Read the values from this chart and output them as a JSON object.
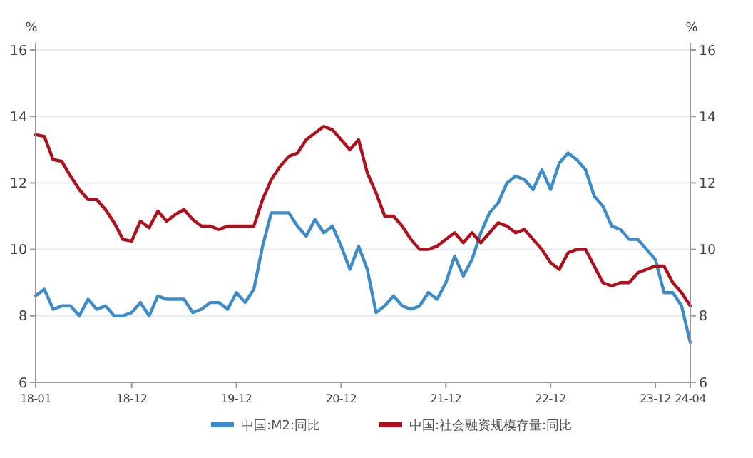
{
  "chart_data": {
    "type": "line",
    "ylabel": "%",
    "y2label": "%",
    "categories": [
      "18-01",
      null,
      null,
      null,
      null,
      null,
      null,
      null,
      null,
      null,
      null,
      "18-12",
      null,
      null,
      null,
      null,
      null,
      null,
      null,
      null,
      null,
      null,
      null,
      "19-12",
      null,
      null,
      null,
      null,
      null,
      null,
      null,
      null,
      null,
      null,
      null,
      "20-12",
      null,
      null,
      null,
      null,
      null,
      null,
      null,
      null,
      null,
      null,
      null,
      "21-12",
      null,
      null,
      null,
      null,
      null,
      null,
      null,
      null,
      null,
      null,
      null,
      "22-12",
      null,
      null,
      null,
      null,
      null,
      null,
      null,
      null,
      null,
      null,
      null,
      "23-12",
      null,
      null,
      null,
      "24-04"
    ],
    "series": [
      {
        "name": "中国:M2:同比",
        "color": "#3d8bc9",
        "values": [
          8.6,
          8.8,
          8.2,
          8.3,
          8.3,
          8.0,
          8.5,
          8.2,
          8.3,
          8.0,
          8.0,
          8.1,
          8.4,
          8.0,
          8.6,
          8.5,
          8.5,
          8.5,
          8.1,
          8.2,
          8.4,
          8.4,
          8.2,
          8.7,
          8.4,
          8.8,
          10.1,
          11.1,
          11.1,
          11.1,
          10.7,
          10.4,
          10.9,
          10.5,
          10.7,
          10.1,
          9.4,
          10.1,
          9.4,
          8.1,
          8.3,
          8.6,
          8.3,
          8.2,
          8.3,
          8.7,
          8.5,
          9.0,
          9.8,
          9.2,
          9.7,
          10.5,
          11.1,
          11.4,
          12.0,
          12.2,
          12.1,
          11.8,
          12.4,
          11.8,
          12.6,
          12.9,
          12.7,
          12.4,
          11.6,
          11.3,
          10.7,
          10.6,
          10.3,
          10.3,
          10.0,
          9.7,
          8.7,
          8.7,
          8.3,
          7.2
        ]
      },
      {
        "name": "中国:社会融资规模存量:同比",
        "color": "#b0101c",
        "values": [
          13.45,
          13.4,
          12.7,
          12.65,
          12.2,
          11.8,
          11.5,
          11.5,
          11.2,
          10.8,
          10.3,
          10.25,
          10.85,
          10.65,
          11.15,
          10.85,
          11.05,
          11.2,
          10.9,
          10.7,
          10.7,
          10.6,
          10.7,
          10.7,
          10.7,
          10.7,
          11.5,
          12.1,
          12.5,
          12.8,
          12.9,
          13.3,
          13.5,
          13.7,
          13.6,
          13.3,
          13.0,
          13.3,
          12.3,
          11.7,
          11.0,
          11.0,
          10.7,
          10.3,
          10.0,
          10.0,
          10.1,
          10.3,
          10.5,
          10.2,
          10.5,
          10.2,
          10.5,
          10.8,
          10.7,
          10.5,
          10.6,
          10.3,
          10.0,
          9.6,
          9.4,
          9.9,
          10.0,
          10.0,
          9.5,
          9.0,
          8.9,
          9.0,
          9.0,
          9.3,
          9.4,
          9.5,
          9.5,
          9.0,
          8.7,
          8.3
        ]
      }
    ],
    "ylim": [
      6,
      16
    ],
    "yticks": [
      6,
      8,
      10,
      12,
      14,
      16
    ],
    "y2lim": [
      6,
      16
    ],
    "y2ticks": [
      6,
      8,
      10,
      12,
      14,
      16
    ],
    "grid": "y",
    "legend": "bottom",
    "line_style": "solid",
    "marker": "none"
  }
}
